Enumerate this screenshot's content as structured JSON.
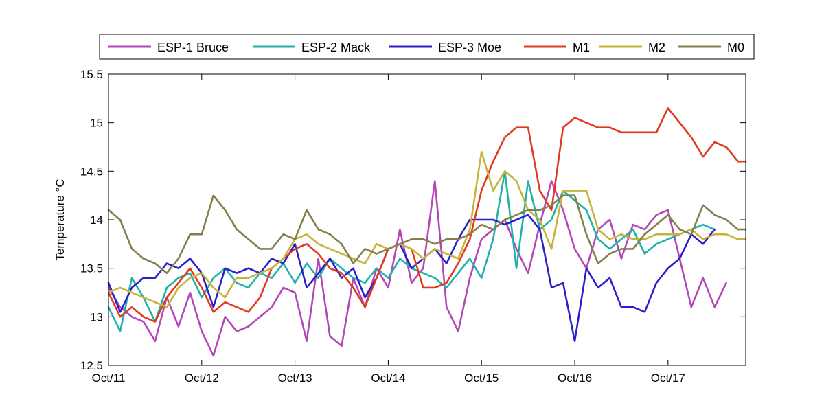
{
  "chart_data": {
    "type": "line",
    "title": "",
    "xlabel": "",
    "ylabel": "Temperature °C",
    "xlim": [
      "2011-10-11",
      "2011-10-17 20:00"
    ],
    "ylim": [
      12.5,
      15.5
    ],
    "x_ticks": [
      "Oct/11",
      "Oct/12",
      "Oct/13",
      "Oct/14",
      "Oct/15",
      "Oct/16",
      "Oct/17"
    ],
    "y_ticks": [
      "12.5",
      "13",
      "13.5",
      "14",
      "14.5",
      "15",
      "15.5"
    ],
    "grid": false,
    "legend_position": "top",
    "series": [
      {
        "name": "ESP-1 Bruce",
        "color": "#b347b8",
        "x": [
          "2011-10-11 00:00",
          "2011-10-11 03:00",
          "2011-10-11 06:00",
          "2011-10-11 09:00",
          "2011-10-11 12:00",
          "2011-10-11 15:00",
          "2011-10-11 18:00",
          "2011-10-11 21:00",
          "2011-10-12 00:00",
          "2011-10-12 03:00",
          "2011-10-12 06:00",
          "2011-10-12 09:00",
          "2011-10-12 12:00",
          "2011-10-12 15:00",
          "2011-10-12 18:00",
          "2011-10-12 21:00",
          "2011-10-13 00:00",
          "2011-10-13 03:00",
          "2011-10-13 06:00",
          "2011-10-13 09:00",
          "2011-10-13 12:00",
          "2011-10-13 15:00",
          "2011-10-13 18:00",
          "2011-10-13 21:00",
          "2011-10-14 00:00",
          "2011-10-14 03:00",
          "2011-10-14 06:00",
          "2011-10-14 09:00",
          "2011-10-14 12:00",
          "2011-10-14 15:00",
          "2011-10-14 18:00",
          "2011-10-14 21:00",
          "2011-10-15 00:00",
          "2011-10-15 03:00",
          "2011-10-15 06:00",
          "2011-10-15 09:00",
          "2011-10-15 12:00",
          "2011-10-15 15:00",
          "2011-10-15 18:00",
          "2011-10-15 21:00",
          "2011-10-16 00:00",
          "2011-10-16 03:00",
          "2011-10-16 06:00",
          "2011-10-16 09:00",
          "2011-10-16 12:00",
          "2011-10-16 15:00",
          "2011-10-16 18:00",
          "2011-10-16 21:00",
          "2011-10-17 00:00",
          "2011-10-17 03:00",
          "2011-10-17 06:00",
          "2011-10-17 09:00",
          "2011-10-17 12:00",
          "2011-10-17 15:00"
        ],
        "y": [
          13.3,
          13.1,
          13.0,
          12.95,
          12.75,
          13.2,
          12.9,
          13.25,
          12.85,
          12.6,
          13.0,
          12.85,
          12.9,
          13.0,
          13.1,
          13.3,
          13.25,
          12.75,
          13.6,
          12.8,
          12.7,
          13.4,
          13.1,
          13.5,
          13.3,
          13.9,
          13.35,
          13.5,
          14.4,
          13.1,
          12.85,
          13.4,
          13.8,
          13.9,
          14.0,
          13.7,
          13.45,
          13.95,
          14.4,
          14.1,
          13.7,
          13.5,
          13.9,
          14.0,
          13.6,
          13.95,
          13.9,
          14.05,
          14.1,
          13.6,
          13.1,
          13.4,
          13.1,
          13.35
        ]
      },
      {
        "name": "ESP-2 Mack",
        "color": "#20b2aa",
        "x": [
          "2011-10-11 00:00",
          "2011-10-11 03:00",
          "2011-10-11 06:00",
          "2011-10-11 09:00",
          "2011-10-11 12:00",
          "2011-10-11 15:00",
          "2011-10-11 18:00",
          "2011-10-11 21:00",
          "2011-10-12 00:00",
          "2011-10-12 03:00",
          "2011-10-12 06:00",
          "2011-10-12 09:00",
          "2011-10-12 12:00",
          "2011-10-12 15:00",
          "2011-10-12 18:00",
          "2011-10-12 21:00",
          "2011-10-13 00:00",
          "2011-10-13 03:00",
          "2011-10-13 06:00",
          "2011-10-13 09:00",
          "2011-10-13 12:00",
          "2011-10-13 15:00",
          "2011-10-13 18:00",
          "2011-10-13 21:00",
          "2011-10-14 00:00",
          "2011-10-14 03:00",
          "2011-10-14 06:00",
          "2011-10-14 09:00",
          "2011-10-14 12:00",
          "2011-10-14 15:00",
          "2011-10-14 18:00",
          "2011-10-14 21:00",
          "2011-10-15 00:00",
          "2011-10-15 03:00",
          "2011-10-15 06:00",
          "2011-10-15 09:00",
          "2011-10-15 12:00",
          "2011-10-15 15:00",
          "2011-10-15 18:00",
          "2011-10-15 21:00",
          "2011-10-16 00:00",
          "2011-10-16 03:00",
          "2011-10-16 06:00",
          "2011-10-16 09:00",
          "2011-10-16 12:00",
          "2011-10-16 15:00",
          "2011-10-16 18:00",
          "2011-10-16 21:00",
          "2011-10-17 00:00",
          "2011-10-17 03:00",
          "2011-10-17 06:00",
          "2011-10-17 09:00",
          "2011-10-17 12:00"
        ],
        "y": [
          13.1,
          12.85,
          13.4,
          13.2,
          12.95,
          13.3,
          13.4,
          13.45,
          13.2,
          13.4,
          13.5,
          13.35,
          13.3,
          13.45,
          13.4,
          13.55,
          13.35,
          13.55,
          13.4,
          13.6,
          13.5,
          13.4,
          13.35,
          13.5,
          13.4,
          13.6,
          13.5,
          13.45,
          13.4,
          13.3,
          13.45,
          13.6,
          13.4,
          13.8,
          14.5,
          13.5,
          14.4,
          13.9,
          14.0,
          14.3,
          14.2,
          14.1,
          13.8,
          13.7,
          13.8,
          13.9,
          13.65,
          13.75,
          13.8,
          13.85,
          13.9,
          13.95,
          13.9
        ]
      },
      {
        "name": "ESP-3 Moe",
        "color": "#2a1fc9",
        "x": [
          "2011-10-11 00:00",
          "2011-10-11 03:00",
          "2011-10-11 06:00",
          "2011-10-11 09:00",
          "2011-10-11 12:00",
          "2011-10-11 15:00",
          "2011-10-11 18:00",
          "2011-10-11 21:00",
          "2011-10-12 00:00",
          "2011-10-12 03:00",
          "2011-10-12 06:00",
          "2011-10-12 09:00",
          "2011-10-12 12:00",
          "2011-10-12 15:00",
          "2011-10-12 18:00",
          "2011-10-12 21:00",
          "2011-10-13 00:00",
          "2011-10-13 03:00",
          "2011-10-13 06:00",
          "2011-10-13 09:00",
          "2011-10-13 12:00",
          "2011-10-13 15:00",
          "2011-10-13 18:00",
          "2011-10-13 21:00",
          "2011-10-14 00:00",
          "2011-10-14 03:00",
          "2011-10-14 06:00",
          "2011-10-14 09:00",
          "2011-10-14 12:00",
          "2011-10-14 15:00",
          "2011-10-14 18:00",
          "2011-10-14 21:00",
          "2011-10-15 00:00",
          "2011-10-15 03:00",
          "2011-10-15 06:00",
          "2011-10-15 09:00",
          "2011-10-15 12:00",
          "2011-10-15 15:00",
          "2011-10-15 18:00",
          "2011-10-15 21:00",
          "2011-10-16 00:00",
          "2011-10-16 03:00",
          "2011-10-16 06:00",
          "2011-10-16 09:00",
          "2011-10-16 12:00",
          "2011-10-16 15:00",
          "2011-10-16 18:00",
          "2011-10-16 21:00",
          "2011-10-17 00:00",
          "2011-10-17 03:00",
          "2011-10-17 06:00",
          "2011-10-17 09:00",
          "2011-10-17 12:00"
        ],
        "y": [
          13.35,
          13.05,
          13.3,
          13.4,
          13.4,
          13.55,
          13.5,
          13.6,
          13.45,
          13.1,
          13.5,
          13.45,
          13.5,
          13.45,
          13.6,
          13.55,
          13.75,
          13.3,
          13.45,
          13.6,
          13.4,
          13.5,
          13.2,
          13.4,
          13.7,
          13.75,
          13.5,
          13.6,
          13.7,
          13.55,
          13.8,
          14.0,
          14.0,
          14.0,
          13.95,
          14.0,
          14.05,
          13.9,
          13.3,
          13.35,
          12.75,
          13.5,
          13.3,
          13.4,
          13.1,
          13.1,
          13.05,
          13.35,
          13.5,
          13.6,
          13.85,
          13.75,
          13.9
        ]
      },
      {
        "name": "M1",
        "color": "#e03a1e",
        "x": [
          "2011-10-11 00:00",
          "2011-10-11 03:00",
          "2011-10-11 06:00",
          "2011-10-11 09:00",
          "2011-10-11 12:00",
          "2011-10-11 15:00",
          "2011-10-11 18:00",
          "2011-10-11 21:00",
          "2011-10-12 00:00",
          "2011-10-12 03:00",
          "2011-10-12 06:00",
          "2011-10-12 09:00",
          "2011-10-12 12:00",
          "2011-10-12 15:00",
          "2011-10-12 18:00",
          "2011-10-12 21:00",
          "2011-10-13 00:00",
          "2011-10-13 03:00",
          "2011-10-13 06:00",
          "2011-10-13 09:00",
          "2011-10-13 12:00",
          "2011-10-13 15:00",
          "2011-10-13 18:00",
          "2011-10-13 21:00",
          "2011-10-14 00:00",
          "2011-10-14 03:00",
          "2011-10-14 06:00",
          "2011-10-14 09:00",
          "2011-10-14 12:00",
          "2011-10-14 15:00",
          "2011-10-14 18:00",
          "2011-10-14 21:00",
          "2011-10-15 00:00",
          "2011-10-15 03:00",
          "2011-10-15 06:00",
          "2011-10-15 09:00",
          "2011-10-15 12:00",
          "2011-10-15 15:00",
          "2011-10-15 18:00",
          "2011-10-15 21:00",
          "2011-10-16 00:00",
          "2011-10-16 03:00",
          "2011-10-16 06:00",
          "2011-10-16 09:00",
          "2011-10-16 12:00",
          "2011-10-16 15:00",
          "2011-10-16 18:00",
          "2011-10-16 21:00",
          "2011-10-17 00:00",
          "2011-10-17 03:00",
          "2011-10-17 06:00",
          "2011-10-17 09:00",
          "2011-10-17 12:00",
          "2011-10-17 15:00",
          "2011-10-17 18:00",
          "2011-10-17 20:00"
        ],
        "y": [
          13.25,
          13.0,
          13.1,
          13.0,
          12.95,
          13.2,
          13.35,
          13.5,
          13.3,
          13.05,
          13.15,
          13.1,
          13.05,
          13.2,
          13.5,
          13.6,
          13.7,
          13.75,
          13.65,
          13.5,
          13.45,
          13.3,
          13.1,
          13.4,
          13.7,
          13.75,
          13.7,
          13.3,
          13.3,
          13.35,
          13.55,
          13.8,
          14.3,
          14.6,
          14.85,
          14.95,
          14.95,
          14.3,
          14.1,
          14.95,
          15.05,
          15.0,
          14.95,
          14.95,
          14.9,
          14.9,
          14.9,
          14.9,
          15.15,
          15.0,
          14.85,
          14.65,
          14.8,
          14.75,
          14.6,
          14.6
        ]
      },
      {
        "name": "M2",
        "color": "#c8b33a",
        "x": [
          "2011-10-11 00:00",
          "2011-10-11 03:00",
          "2011-10-11 06:00",
          "2011-10-11 09:00",
          "2011-10-11 12:00",
          "2011-10-11 15:00",
          "2011-10-11 18:00",
          "2011-10-11 21:00",
          "2011-10-12 00:00",
          "2011-10-12 03:00",
          "2011-10-12 06:00",
          "2011-10-12 09:00",
          "2011-10-12 12:00",
          "2011-10-12 15:00",
          "2011-10-12 18:00",
          "2011-10-12 21:00",
          "2011-10-13 00:00",
          "2011-10-13 03:00",
          "2011-10-13 06:00",
          "2011-10-13 09:00",
          "2011-10-13 12:00",
          "2011-10-13 15:00",
          "2011-10-13 18:00",
          "2011-10-13 21:00",
          "2011-10-14 00:00",
          "2011-10-14 03:00",
          "2011-10-14 06:00",
          "2011-10-14 09:00",
          "2011-10-14 12:00",
          "2011-10-14 15:00",
          "2011-10-14 18:00",
          "2011-10-14 21:00",
          "2011-10-15 00:00",
          "2011-10-15 03:00",
          "2011-10-15 06:00",
          "2011-10-15 09:00",
          "2011-10-15 12:00",
          "2011-10-15 15:00",
          "2011-10-15 18:00",
          "2011-10-15 21:00",
          "2011-10-16 00:00",
          "2011-10-16 03:00",
          "2011-10-16 06:00",
          "2011-10-16 09:00",
          "2011-10-16 12:00",
          "2011-10-16 15:00",
          "2011-10-16 18:00",
          "2011-10-16 21:00",
          "2011-10-17 00:00",
          "2011-10-17 03:00",
          "2011-10-17 06:00",
          "2011-10-17 09:00",
          "2011-10-17 12:00",
          "2011-10-17 15:00",
          "2011-10-17 18:00",
          "2011-10-17 20:00"
        ],
        "y": [
          13.25,
          13.3,
          13.25,
          13.2,
          13.15,
          13.1,
          13.3,
          13.4,
          13.45,
          13.3,
          13.2,
          13.4,
          13.4,
          13.45,
          13.5,
          13.6,
          13.8,
          13.85,
          13.75,
          13.7,
          13.65,
          13.6,
          13.55,
          13.75,
          13.7,
          13.75,
          13.7,
          13.6,
          13.7,
          13.65,
          13.6,
          13.9,
          14.7,
          14.3,
          14.5,
          14.4,
          14.1,
          14.0,
          13.7,
          14.3,
          14.3,
          14.3,
          13.9,
          13.8,
          13.85,
          13.8,
          13.8,
          13.85,
          13.85,
          13.85,
          13.9,
          13.8,
          13.85,
          13.85,
          13.8,
          13.8
        ]
      },
      {
        "name": "M0",
        "color": "#857d4b",
        "x": [
          "2011-10-11 00:00",
          "2011-10-11 03:00",
          "2011-10-11 06:00",
          "2011-10-11 09:00",
          "2011-10-11 12:00",
          "2011-10-11 15:00",
          "2011-10-11 18:00",
          "2011-10-11 21:00",
          "2011-10-12 00:00",
          "2011-10-12 03:00",
          "2011-10-12 06:00",
          "2011-10-12 09:00",
          "2011-10-12 12:00",
          "2011-10-12 15:00",
          "2011-10-12 18:00",
          "2011-10-12 21:00",
          "2011-10-13 00:00",
          "2011-10-13 03:00",
          "2011-10-13 06:00",
          "2011-10-13 09:00",
          "2011-10-13 12:00",
          "2011-10-13 15:00",
          "2011-10-13 18:00",
          "2011-10-13 21:00",
          "2011-10-14 00:00",
          "2011-10-14 03:00",
          "2011-10-14 06:00",
          "2011-10-14 09:00",
          "2011-10-14 12:00",
          "2011-10-14 15:00",
          "2011-10-14 18:00",
          "2011-10-14 21:00",
          "2011-10-15 00:00",
          "2011-10-15 03:00",
          "2011-10-15 06:00",
          "2011-10-15 09:00",
          "2011-10-15 12:00",
          "2011-10-15 15:00",
          "2011-10-15 18:00",
          "2011-10-15 21:00",
          "2011-10-16 00:00",
          "2011-10-16 03:00",
          "2011-10-16 06:00",
          "2011-10-16 09:00",
          "2011-10-16 12:00",
          "2011-10-16 15:00",
          "2011-10-16 18:00",
          "2011-10-16 21:00",
          "2011-10-17 00:00",
          "2011-10-17 03:00",
          "2011-10-17 06:00",
          "2011-10-17 09:00",
          "2011-10-17 12:00",
          "2011-10-17 15:00",
          "2011-10-17 18:00",
          "2011-10-17 20:00"
        ],
        "y": [
          14.1,
          14.0,
          13.7,
          13.6,
          13.55,
          13.45,
          13.6,
          13.85,
          13.85,
          14.25,
          14.1,
          13.9,
          13.8,
          13.7,
          13.7,
          13.85,
          13.8,
          14.1,
          13.9,
          13.85,
          13.75,
          13.55,
          13.7,
          13.65,
          13.7,
          13.75,
          13.8,
          13.8,
          13.75,
          13.8,
          13.8,
          13.85,
          13.95,
          13.9,
          14.0,
          14.05,
          14.1,
          14.1,
          14.15,
          14.25,
          14.25,
          13.85,
          13.55,
          13.65,
          13.7,
          13.7,
          13.85,
          13.95,
          14.05,
          13.9,
          13.85,
          14.15,
          14.05,
          14.0,
          13.9,
          13.9
        ]
      }
    ]
  }
}
